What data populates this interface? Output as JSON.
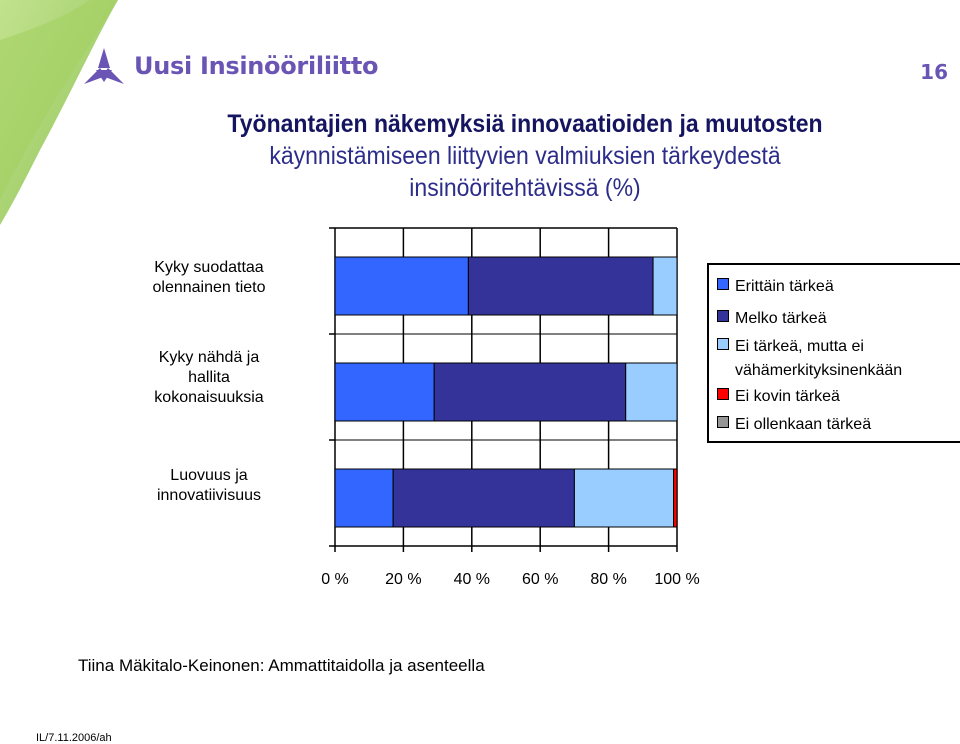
{
  "header": {
    "logo_text": "Uusi Insinööriliitto",
    "page_number": "16"
  },
  "title_lines": [
    "Työnantajien näkemyksiä innovaatioiden ja muutosten",
    "käynnistämiseen liittyvien valmiuksien tärkeydestä",
    "insinööritehtävissä (%)"
  ],
  "footer": {
    "text": "Tiina Mäkitalo-Keinonen: Ammattitaidolla ja asenteella",
    "code": "IL/7.11.2006/ah"
  },
  "colors": {
    "brand": "#6a55b5",
    "green": "#8bc34a"
  },
  "chart_data": {
    "type": "bar",
    "orientation": "horizontal",
    "stacked": true,
    "categories": [
      "Kyky suodattaa olennainen tieto",
      "Kyky nähdä ja hallita kokonaisuuksia",
      "Luovuus ja innovatiivisuus"
    ],
    "category_label_lines": [
      [
        "Kyky suodattaa",
        "olennainen tieto"
      ],
      [
        "Kyky nähdä ja",
        "hallita",
        "kokonaisuuksia"
      ],
      [
        "Luovuus ja",
        "innovatiivisuus"
      ]
    ],
    "series": [
      {
        "name": "Erittäin tärkeä",
        "color": "#3366ff",
        "values": [
          39,
          29,
          17
        ]
      },
      {
        "name": "Melko tärkeä",
        "color": "#333399",
        "values": [
          54,
          56,
          53
        ]
      },
      {
        "name": "Ei tärkeä, mutta ei vähämerkityksinenkään",
        "color": "#99ccff",
        "values": [
          7,
          15,
          29
        ]
      },
      {
        "name": "Ei kovin tärkeä",
        "color": "#ff0000",
        "values": [
          0,
          0,
          1
        ]
      },
      {
        "name": "Ei ollenkaan tärkeä",
        "color": "#969696",
        "values": [
          0,
          0,
          0
        ]
      }
    ],
    "legend_lines": [
      [
        "Erittäin tärkeä"
      ],
      [
        "Melko tärkeä"
      ],
      [
        "Ei tärkeä, mutta ei",
        "vähämerkityksinenkään"
      ],
      [
        "Ei kovin tärkeä"
      ],
      [
        "Ei ollenkaan tärkeä"
      ]
    ],
    "x_ticks": [
      "0 %",
      "20 %",
      "40 %",
      "60 %",
      "80 %",
      "100 %"
    ],
    "xlim": [
      0,
      100
    ],
    "grid": true,
    "legend_position": "right"
  }
}
